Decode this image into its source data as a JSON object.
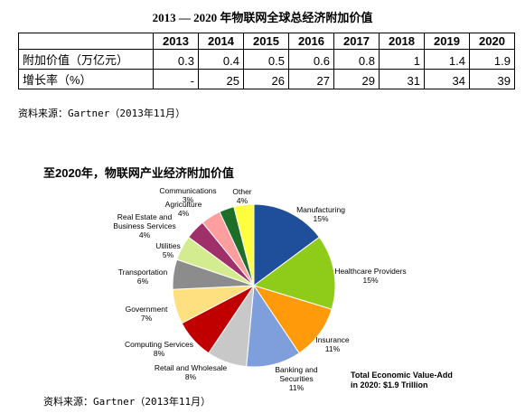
{
  "table": {
    "title": "2013 — 2020 年物联网全球总经济附加价值",
    "header": [
      "2013",
      "2014",
      "2015",
      "2016",
      "2017",
      "2018",
      "2019",
      "2020"
    ],
    "rows": [
      [
        "附加价值（万亿元）",
        0.3,
        0.4,
        0.5,
        0.6,
        0.8,
        1,
        1.4,
        1.9
      ],
      [
        "增长率（%）",
        "-",
        25,
        26,
        27,
        29,
        31,
        34,
        39
      ]
    ],
    "source": "资料来源：Gartner（2013年11月）"
  },
  "chart_data": {
    "type": "pie",
    "title": "至2020年，物联网产业经济附加价值",
    "categories": [
      "Manufacturing",
      "Healthcare Providers",
      "Insurance",
      "Banking and\nSecurities",
      "Retail and Wholesale",
      "Computing Services",
      "Government",
      "Transportation",
      "Utilities",
      "Real Estate and\nBusiness Services",
      "Agriculture",
      "Communications",
      "Other"
    ],
    "values": [
      15,
      15,
      11,
      11,
      8,
      8,
      7,
      6,
      5,
      4,
      4,
      3,
      4
    ],
    "value_labels": [
      "15%",
      "15%",
      "11%",
      "11%",
      "8%",
      "8%",
      "7%",
      "6%",
      "5%",
      "4%",
      "4%",
      "3%",
      "4%"
    ],
    "colors": [
      "#1f4e9a",
      "#8fcc1a",
      "#ff9a0a",
      "#7e9fdc",
      "#c8c8c8",
      "#c00000",
      "#ffe080",
      "#8c8c8c",
      "#d4ec90",
      "#a0306a",
      "#ff9e9e",
      "#1e6e2a",
      "#ffff40"
    ],
    "annotation": "Total Economic Value-Add\nin 2020: $1.9 Trillion",
    "source": "资料来源：Gartner（2013年11月）"
  }
}
